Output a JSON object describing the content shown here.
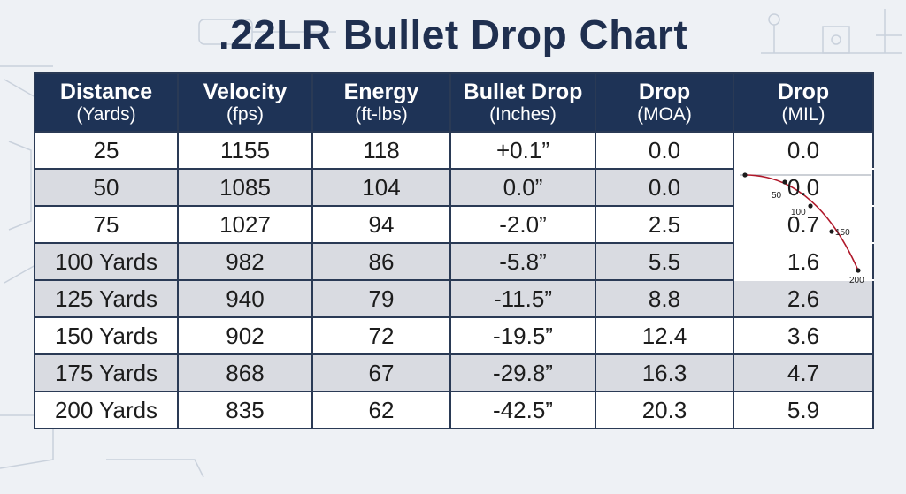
{
  "title": ".22LR Bullet Drop Chart",
  "columns": [
    {
      "label": "Distance",
      "unit": "(Yards)"
    },
    {
      "label": "Velocity",
      "unit": "(fps)"
    },
    {
      "label": "Energy",
      "unit": "(ft-lbs)"
    },
    {
      "label": "Bullet Drop",
      "unit": "(Inches)"
    },
    {
      "label": "Drop",
      "unit": "(MOA)"
    },
    {
      "label": "Drop",
      "unit": "(MIL)"
    }
  ],
  "rows": [
    {
      "distance": "25",
      "velocity": "1155",
      "energy": "118",
      "drop_in": "+0.1”",
      "drop_moa": "0.0",
      "drop_mil": "0.0"
    },
    {
      "distance": "50",
      "velocity": "1085",
      "energy": "104",
      "drop_in": "0.0”",
      "drop_moa": "0.0",
      "drop_mil": "0.0"
    },
    {
      "distance": "75",
      "velocity": "1027",
      "energy": "94",
      "drop_in": "-2.0”",
      "drop_moa": "2.5",
      "drop_mil": "0.7"
    },
    {
      "distance": "100 Yards",
      "velocity": "982",
      "energy": "86",
      "drop_in": "-5.8”",
      "drop_moa": "5.5",
      "drop_mil": "1.6"
    },
    {
      "distance": "125 Yards",
      "velocity": "940",
      "energy": "79",
      "drop_in": "-11.5”",
      "drop_moa": "8.8",
      "drop_mil": "2.6"
    },
    {
      "distance": "150 Yards",
      "velocity": "902",
      "energy": "72",
      "drop_in": "-19.5”",
      "drop_moa": "12.4",
      "drop_mil": "3.6"
    },
    {
      "distance": "175 Yards",
      "velocity": "868",
      "energy": "67",
      "drop_in": "-29.8”",
      "drop_moa": "16.3",
      "drop_mil": "4.7"
    },
    {
      "distance": "200 Yards",
      "velocity": "835",
      "energy": "62",
      "drop_in": "-42.5”",
      "drop_moa": "20.3",
      "drop_mil": "5.9"
    }
  ],
  "trajectory_inset": {
    "point_labels": [
      "50",
      "100",
      "150",
      "200"
    ]
  },
  "chart_data": {
    "type": "table",
    "title": ".22LR Bullet Drop Chart",
    "headers": [
      "Distance (Yards)",
      "Velocity (fps)",
      "Energy (ft-lbs)",
      "Bullet Drop (Inches)",
      "Drop (MOA)",
      "Drop (MIL)"
    ],
    "distance_yards": [
      25,
      50,
      75,
      100,
      125,
      150,
      175,
      200
    ],
    "velocity_fps": [
      1155,
      1085,
      1027,
      982,
      940,
      902,
      868,
      835
    ],
    "energy_ft_lbs": [
      118,
      104,
      94,
      86,
      79,
      72,
      67,
      62
    ],
    "bullet_drop_inches": [
      0.1,
      0.0,
      -2.0,
      -5.8,
      -11.5,
      -19.5,
      -29.8,
      -42.5
    ],
    "drop_moa": [
      0.0,
      0.0,
      2.5,
      5.5,
      8.8,
      12.4,
      16.3,
      20.3
    ],
    "drop_mil": [
      0.0,
      0.0,
      0.7,
      1.6,
      2.6,
      3.6,
      4.7,
      5.9
    ]
  },
  "colors": {
    "header_bg": "#1e3356",
    "title": "#1f2f4f",
    "row_alt": "#d9dbe1",
    "trajectory": "#b0182a"
  }
}
